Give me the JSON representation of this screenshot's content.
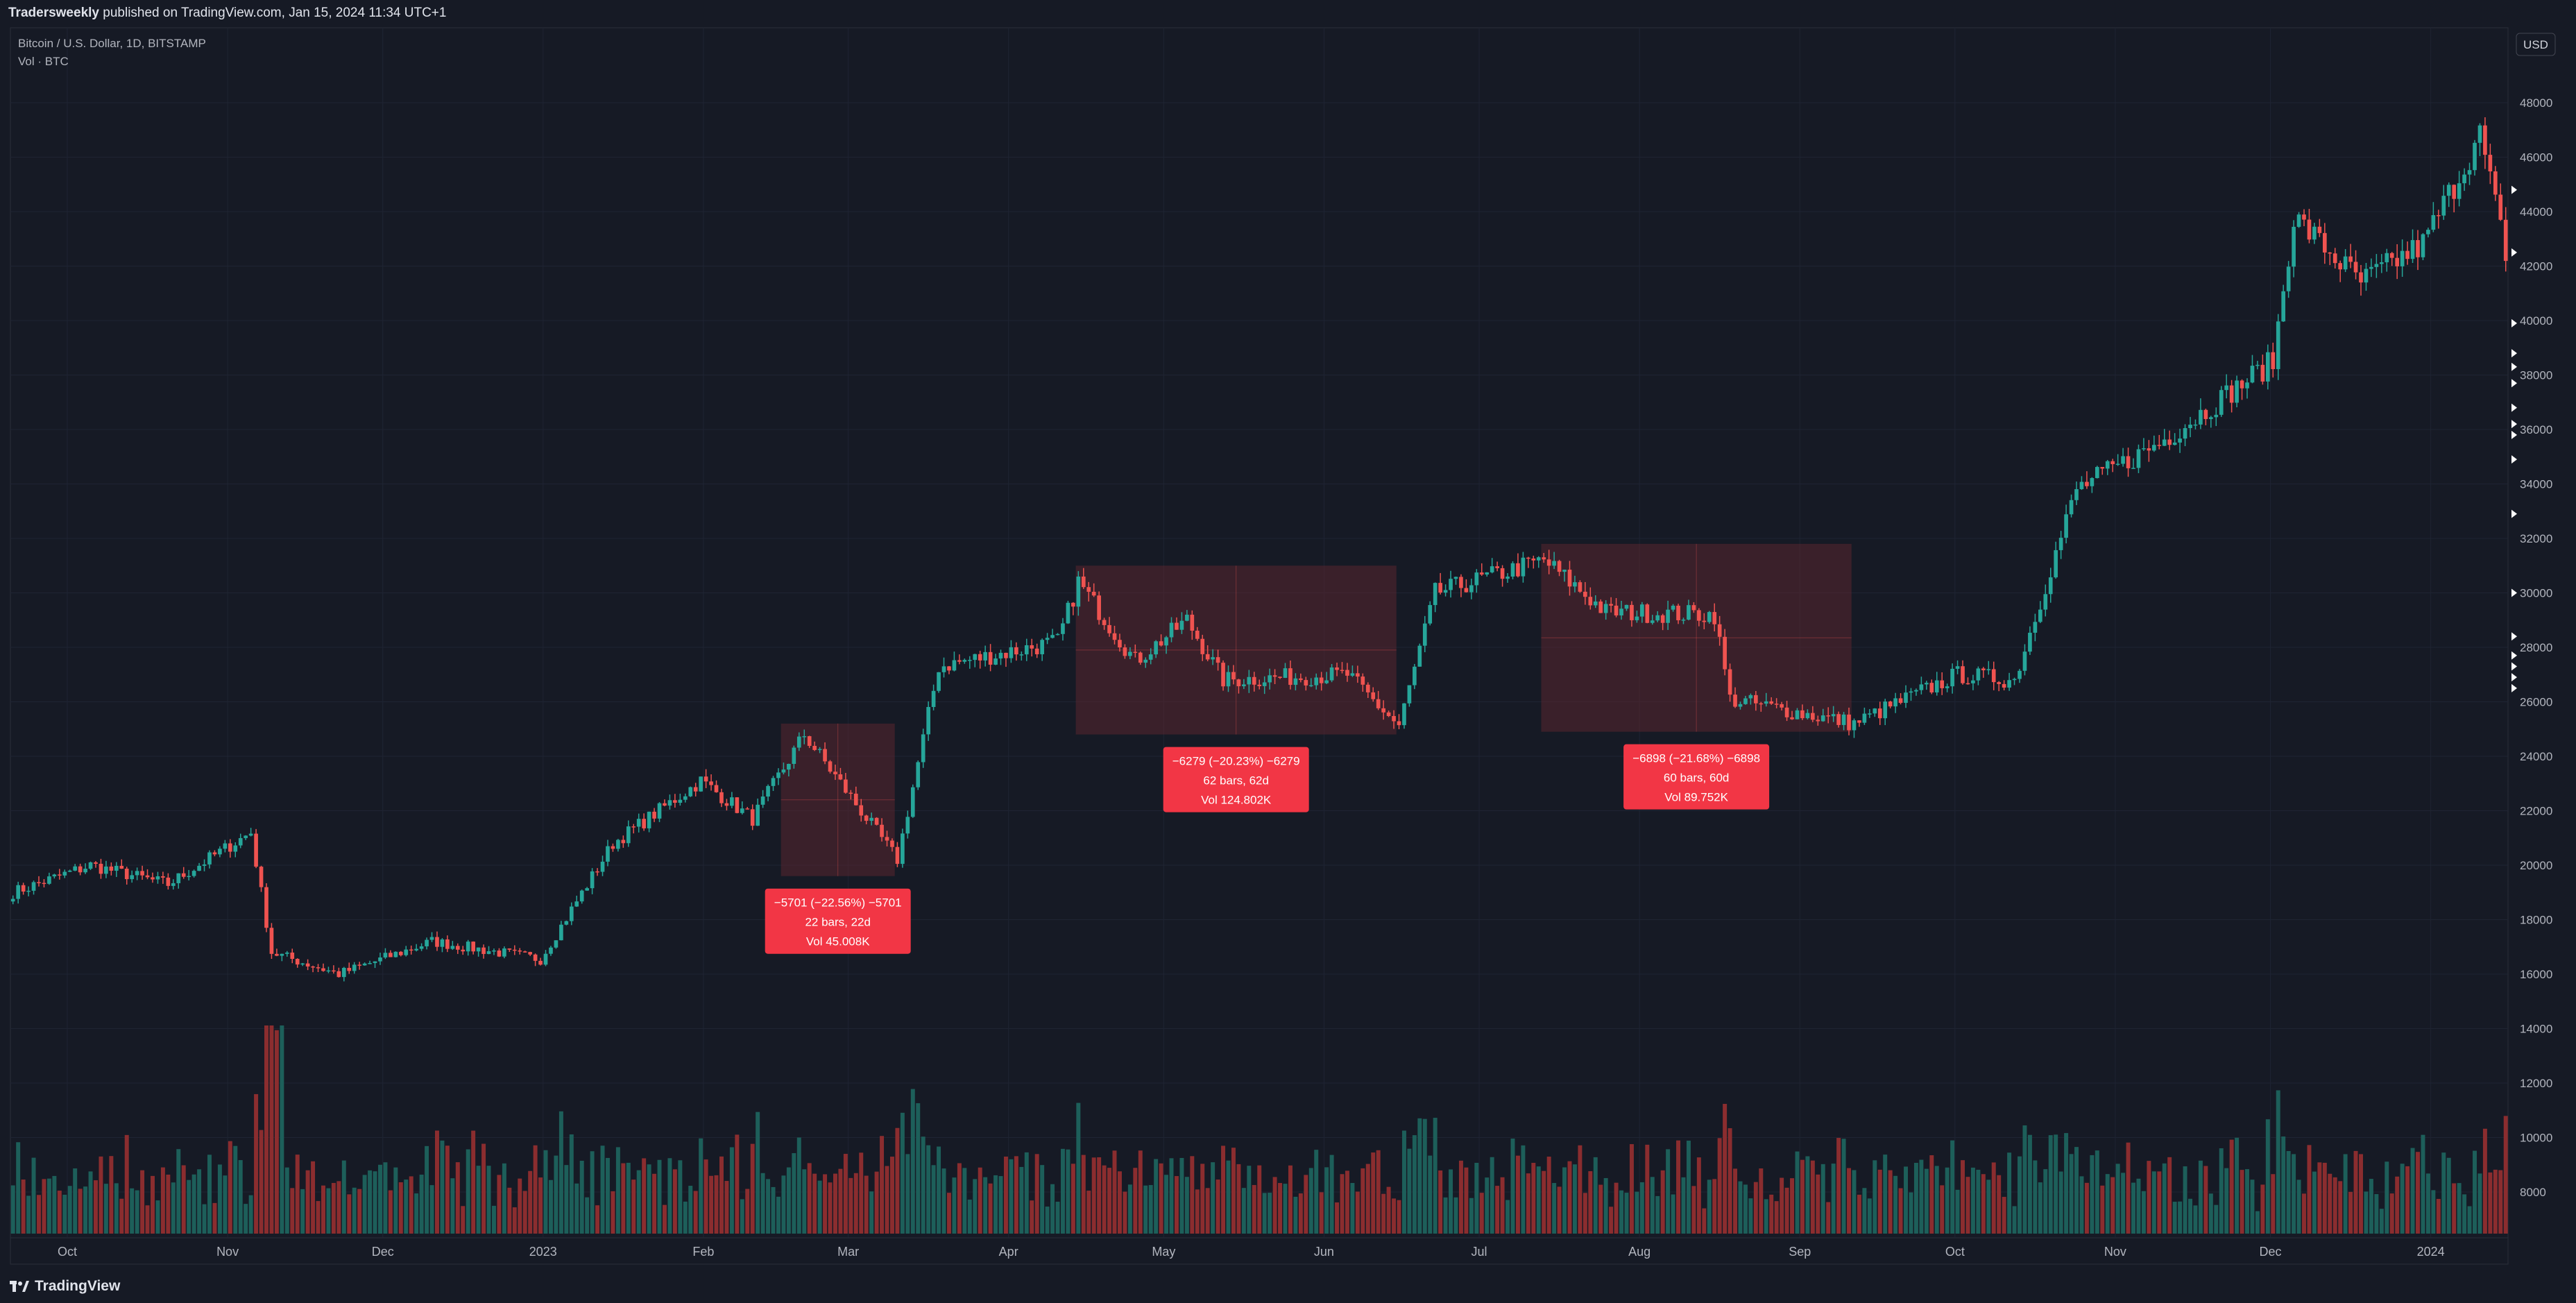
{
  "header": {
    "publisher": "Tradersweekly",
    "published_on": "published on TradingView.com, Jan 15, 2024 11:34 UTC+1"
  },
  "legend": {
    "symbol": "Bitcoin / U.S. Dollar, 1D, BITSTAMP",
    "volume": "Vol · BTC"
  },
  "currency_button": "USD",
  "brand": "TradingView",
  "colors": {
    "background": "#161a25",
    "grid": "#1f2433",
    "up": "#26a69a",
    "down": "#ef5350",
    "vol_up": "#1d5f5a",
    "vol_down": "#8b2d2f",
    "box": "#5a2630",
    "label": "#f23645",
    "axis_text": "#b2b5be"
  },
  "chart_data": {
    "type": "candlestick",
    "x_tick_labels": [
      "Oct",
      "Nov",
      "Dec",
      "2023",
      "Feb",
      "Mar",
      "Apr",
      "May",
      "Jun",
      "Jul",
      "Aug",
      "Sep",
      "Oct",
      "Nov",
      "Dec",
      "2024"
    ],
    "y_tick_labels": [
      8000,
      10000,
      12000,
      14000,
      16000,
      18000,
      20000,
      22000,
      24000,
      26000,
      28000,
      30000,
      32000,
      34000,
      36000,
      38000,
      40000,
      42000,
      44000,
      46000,
      48000
    ],
    "ylim": [
      6000,
      50000
    ],
    "xlim": [
      "2022-09-20",
      "2024-01-15"
    ],
    "anchors": [
      [
        "2022-09-20",
        19000
      ],
      [
        "2022-10-05",
        20000
      ],
      [
        "2022-10-20",
        19300
      ],
      [
        "2022-11-05",
        21200
      ],
      [
        "2022-11-09",
        16800
      ],
      [
        "2022-11-22",
        16000
      ],
      [
        "2022-12-10",
        17200
      ],
      [
        "2022-12-31",
        16550
      ],
      [
        "2023-01-14",
        20800
      ],
      [
        "2023-01-31",
        23100
      ],
      [
        "2023-02-10",
        21700
      ],
      [
        "2023-02-20",
        24800
      ],
      [
        "2023-03-10",
        20200
      ],
      [
        "2023-03-18",
        27300
      ],
      [
        "2023-04-10",
        28200
      ],
      [
        "2023-04-14",
        30400
      ],
      [
        "2023-04-25",
        27500
      ],
      [
        "2023-05-05",
        29000
      ],
      [
        "2023-05-12",
        26800
      ],
      [
        "2023-06-05",
        27000
      ],
      [
        "2023-06-15",
        25100
      ],
      [
        "2023-06-22",
        30000
      ],
      [
        "2023-07-13",
        31200
      ],
      [
        "2023-07-25",
        29300
      ],
      [
        "2023-08-15",
        29200
      ],
      [
        "2023-08-18",
        26100
      ],
      [
        "2023-09-11",
        25200
      ],
      [
        "2023-10-01",
        27000
      ],
      [
        "2023-10-12",
        26800
      ],
      [
        "2023-10-24",
        33800
      ],
      [
        "2023-11-09",
        35500
      ],
      [
        "2023-12-01",
        38500
      ],
      [
        "2023-12-05",
        43800
      ],
      [
        "2023-12-18",
        41400
      ],
      [
        "2023-12-30",
        42800
      ],
      [
        "2024-01-10",
        46800
      ],
      [
        "2024-01-15",
        42500
      ]
    ],
    "measurements": [
      {
        "start": "2023-02-16",
        "end": "2023-03-10",
        "high": 25200,
        "low": 19600,
        "lines": [
          "−5701 (−22.56%) −5701",
          "22 bars, 22d",
          "Vol 45.008K"
        ]
      },
      {
        "start": "2023-04-14",
        "end": "2023-06-15",
        "high": 31000,
        "low": 24800,
        "lines": [
          "−6279 (−20.23%) −6279",
          "62 bars, 62d",
          "Vol 124.802K"
        ]
      },
      {
        "start": "2023-07-13",
        "end": "2023-09-11",
        "high": 31800,
        "low": 24900,
        "lines": [
          "−6898 (−21.68%) −6898",
          "60 bars, 60d",
          "Vol 89.752K"
        ]
      }
    ]
  }
}
